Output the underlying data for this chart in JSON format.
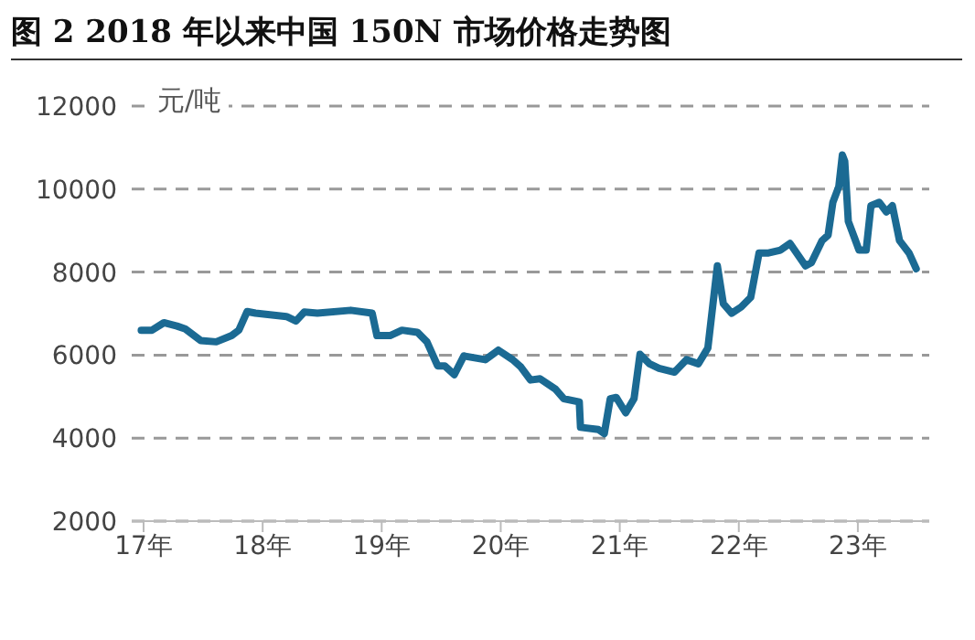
{
  "chart_data": {
    "type": "line",
    "title": "图 2 2018 年以来中国 150N 市场价格走势图",
    "ylabel": "元/吨",
    "x": [
      16.98,
      17.07,
      17.17,
      17.28,
      17.35,
      17.48,
      17.61,
      17.74,
      17.8,
      17.87,
      17.94,
      18.2,
      18.28,
      18.35,
      18.46,
      18.74,
      18.92,
      18.96,
      19.07,
      19.17,
      19.3,
      19.38,
      19.47,
      19.53,
      19.61,
      19.69,
      19.87,
      19.98,
      20.1,
      20.17,
      20.25,
      20.33,
      20.46,
      20.53,
      20.66,
      20.67,
      20.82,
      20.87,
      20.92,
      20.97,
      21.05,
      21.12,
      21.17,
      21.25,
      21.33,
      21.46,
      21.56,
      21.66,
      21.74,
      21.82,
      21.87,
      21.94,
      22.02,
      22.1,
      22.17,
      22.25,
      22.35,
      22.43,
      22.56,
      22.61,
      22.7,
      22.75,
      22.79,
      22.84,
      22.87,
      22.89,
      22.92,
      22.97,
      23.01,
      23.07,
      23.11,
      23.18,
      23.24,
      23.29,
      23.35,
      23.43,
      23.49
    ],
    "series": [
      {
        "color": "#1b6a93",
        "values": [
          6600,
          6600,
          6780,
          6700,
          6630,
          6350,
          6320,
          6470,
          6600,
          7050,
          7010,
          6930,
          6820,
          7040,
          7010,
          7080,
          7010,
          6470,
          6470,
          6600,
          6550,
          6320,
          5740,
          5740,
          5530,
          5980,
          5890,
          6120,
          5890,
          5710,
          5400,
          5430,
          5180,
          4950,
          4870,
          4260,
          4210,
          4110,
          4950,
          4980,
          4610,
          4950,
          6020,
          5790,
          5680,
          5590,
          5890,
          5790,
          6170,
          8150,
          7240,
          7010,
          7160,
          7390,
          8460,
          8460,
          8530,
          8690,
          8150,
          8230,
          8760,
          8890,
          9680,
          10060,
          10820,
          10670,
          9220,
          8840,
          8530,
          8530,
          9600,
          9680,
          9450,
          9600,
          8760,
          8460,
          8080
        ]
      }
    ],
    "xlim": [
      16.9,
      23.6
    ],
    "xticks": [
      {
        "value": 17,
        "label": "17年"
      },
      {
        "value": 18,
        "label": "18年"
      },
      {
        "value": 19,
        "label": "19年"
      },
      {
        "value": 20,
        "label": "20年"
      },
      {
        "value": 21,
        "label": "21年"
      },
      {
        "value": 22,
        "label": "22年"
      },
      {
        "value": 23,
        "label": "23年"
      }
    ],
    "ylim": [
      2000,
      12000
    ],
    "yticks": [
      2000,
      4000,
      6000,
      8000,
      10000,
      12000
    ],
    "grid": "y",
    "legend": false,
    "marker": "none",
    "line_style": "solid"
  }
}
